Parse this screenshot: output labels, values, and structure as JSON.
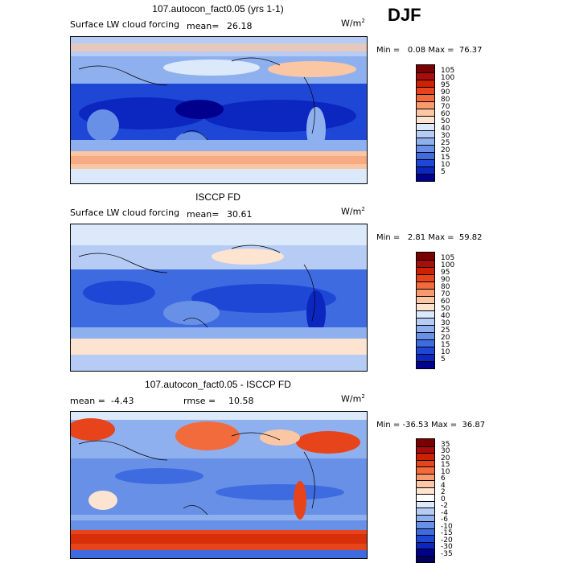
{
  "season": "DJF",
  "panels": [
    {
      "title": "107.autocon_fact0.05 (yrs 1-1)",
      "left_label": "Surface LW cloud forcing",
      "mean_label": "mean=",
      "mean_value": "26.18",
      "units": "W/m",
      "units_exp": "2",
      "min_label": "Min =",
      "min_value": "0.08",
      "max_label": "Max =",
      "max_value": "76.37",
      "ticks": [
        "105",
        "100",
        "95",
        "90",
        "80",
        "70",
        "60",
        "50",
        "40",
        "30",
        "25",
        "20",
        "15",
        "10",
        "5"
      ]
    },
    {
      "title": "ISCCP FD",
      "left_label": "Surface LW cloud forcing",
      "mean_label": "mean=",
      "mean_value": "30.61",
      "units": "W/m",
      "units_exp": "2",
      "min_label": "Min =",
      "min_value": "2.81",
      "max_label": "Max =",
      "max_value": "59.82",
      "ticks": [
        "105",
        "100",
        "95",
        "90",
        "80",
        "70",
        "60",
        "50",
        "40",
        "30",
        "25",
        "20",
        "15",
        "10",
        "5"
      ]
    },
    {
      "title": "107.autocon_fact0.05 - ISCCP FD",
      "left_label": "mean =",
      "mean_label": "",
      "mean_value": "-4.43",
      "rmse_label": "rmse =",
      "rmse_value": "10.58",
      "units": "W/m",
      "units_exp": "2",
      "min_label": "Min =",
      "min_value": "-36.53",
      "max_label": "Max =",
      "max_value": "36.87",
      "ticks": [
        "35",
        "30",
        "20",
        "15",
        "10",
        "6",
        "4",
        "2",
        "0",
        "-2",
        "-4",
        "-6",
        "-10",
        "-15",
        "-20",
        "-30",
        "-35"
      ]
    }
  ],
  "colors": {
    "abs": [
      "#7a0000",
      "#a80d0d",
      "#cc2200",
      "#e8441b",
      "#f26b3c",
      "#f79a6e",
      "#fbc6a4",
      "#fde4d0",
      "#dce9fb",
      "#b6ccf4",
      "#8fb0ee",
      "#6890e6",
      "#3e6be0",
      "#1f47d6",
      "#0c27c0",
      "#00008c"
    ],
    "diff": [
      "#7a0000",
      "#a80d0d",
      "#cc2200",
      "#e8441b",
      "#f26b3c",
      "#f79a6e",
      "#fbc6a4",
      "#fde4d0",
      "#ffffff",
      "#dce9fb",
      "#b6ccf4",
      "#8fb0ee",
      "#6890e6",
      "#3e6be0",
      "#1f47d6",
      "#0c27c0",
      "#00008c",
      "#00005e"
    ]
  }
}
